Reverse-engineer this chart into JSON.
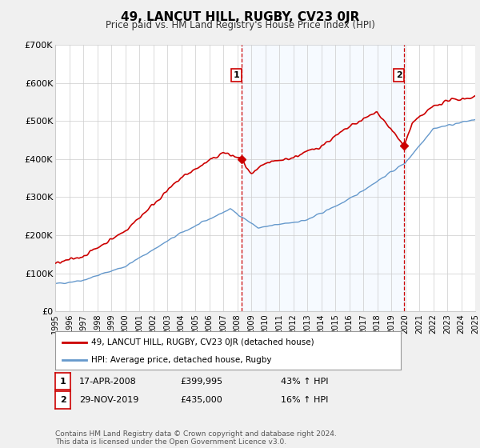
{
  "title": "49, LANCUT HILL, RUGBY, CV23 0JR",
  "subtitle": "Price paid vs. HM Land Registry's House Price Index (HPI)",
  "red_label": "49, LANCUT HILL, RUGBY, CV23 0JR (detached house)",
  "blue_label": "HPI: Average price, detached house, Rugby",
  "sale1_label": "1",
  "sale1_date": "17-APR-2008",
  "sale1_price": "£399,995",
  "sale1_hpi": "43% ↑ HPI",
  "sale2_label": "2",
  "sale2_date": "29-NOV-2019",
  "sale2_price": "£435,000",
  "sale2_hpi": "16% ↑ HPI",
  "footer": "Contains HM Land Registry data © Crown copyright and database right 2024.\nThis data is licensed under the Open Government Licence v3.0.",
  "ylim": [
    0,
    700000
  ],
  "yticks": [
    0,
    100000,
    200000,
    300000,
    400000,
    500000,
    600000,
    700000
  ],
  "ytick_labels": [
    "£0",
    "£100K",
    "£200K",
    "£300K",
    "£400K",
    "£500K",
    "£600K",
    "£700K"
  ],
  "bg_color": "#f0f0f0",
  "plot_bg_color": "#ffffff",
  "red_color": "#cc0000",
  "blue_color": "#6699cc",
  "shade_color": "#ddeeff",
  "vline_color": "#cc0000",
  "grid_color": "#cccccc",
  "sale1_x": 2008.3,
  "sale2_x": 2019.92,
  "sale1_y": 399995,
  "sale2_y": 435000,
  "xmin": 1995,
  "xmax": 2025
}
